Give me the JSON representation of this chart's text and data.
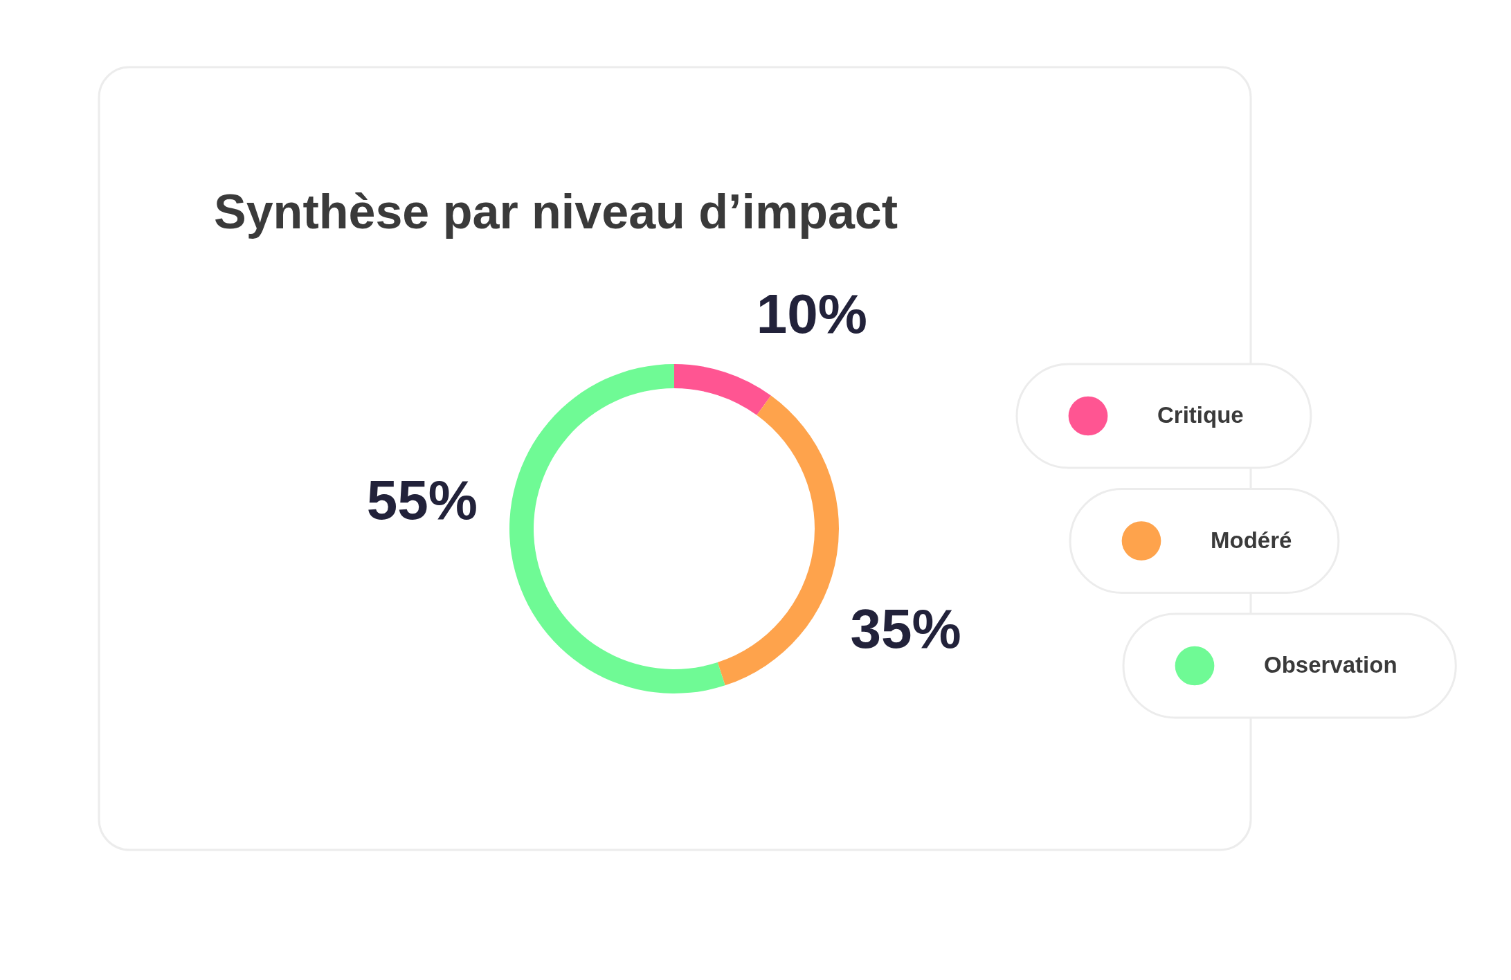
{
  "chart_data": {
    "type": "donut",
    "title": "Synthèse par niveau d’impact",
    "categories": [
      "Critique",
      "Modéré",
      "Observation"
    ],
    "values": [
      10,
      35,
      55
    ],
    "colors": [
      "#ff5592",
      "#fea34c",
      "#6ffa95"
    ],
    "value_labels": [
      "10%",
      "35%",
      "55%"
    ],
    "legend": "right"
  }
}
